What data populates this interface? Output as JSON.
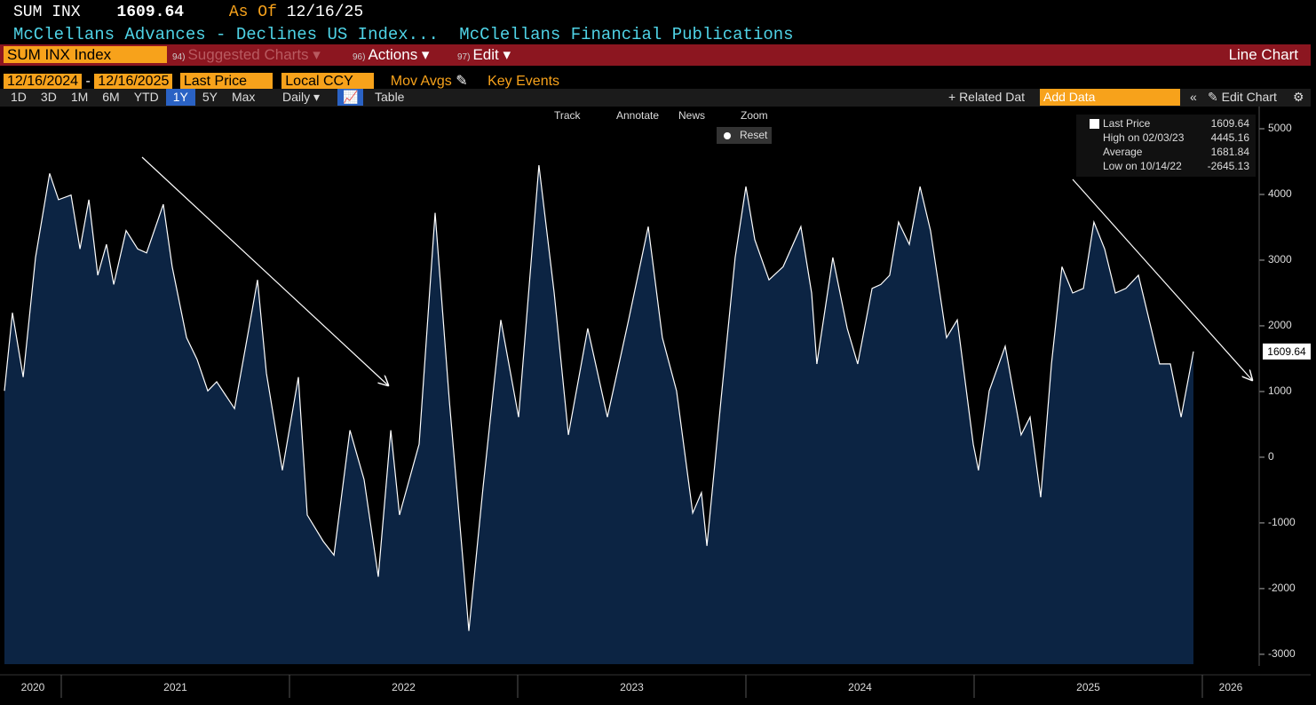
{
  "header": {
    "ticker": "SUM INX",
    "price": "1609.64",
    "as_of_label": "As Of",
    "as_of_date": "12/16/25",
    "description": "McClellans Advances - Declines US Index...",
    "source": "McClellans Financial Publications"
  },
  "toolbar": {
    "security": "SUM INX Index",
    "suggested_num": "94)",
    "suggested": "Suggested Charts",
    "actions_num": "96)",
    "actions": "Actions",
    "edit_num": "97)",
    "edit": "Edit",
    "chart_type": "Line Chart"
  },
  "controls": {
    "start_date": "12/16/2024",
    "end_date": "12/16/2025",
    "field": "Last Price",
    "currency": "Local CCY",
    "mov_avgs": "Mov Avgs",
    "key_events": "Key Events",
    "periods": [
      "1D",
      "3D",
      "1M",
      "6M",
      "YTD",
      "1Y",
      "5Y",
      "Max"
    ],
    "active_period": "1Y",
    "frequency": "Daily",
    "table": "Table",
    "related": "+ Related Dat",
    "add_data": "Add Data",
    "edit_chart": "Edit Chart"
  },
  "chart_tools": {
    "items": [
      "Track",
      "Annotate",
      "News",
      "Zoom"
    ],
    "reset": "Reset"
  },
  "legend": {
    "items": [
      {
        "label": "Last Price",
        "value": 1609.64
      },
      {
        "label": "High on 02/03/23",
        "value": 4445.16
      },
      {
        "label": "Average",
        "value": 1681.84
      },
      {
        "label": "Low on 10/14/22",
        "value": -2645.13
      }
    ]
  },
  "chart_data": {
    "type": "line",
    "color": "#ffffff",
    "fill": "#0c2443",
    "x": [
      2020.751,
      2020.786,
      2020.833,
      2020.887,
      2020.949,
      2020.988,
      2021.043,
      2021.082,
      2021.121,
      2021.16,
      2021.198,
      2021.23,
      2021.284,
      2021.335,
      2021.374,
      2021.447,
      2021.486,
      2021.549,
      2021.595,
      2021.642,
      2021.681,
      2021.759,
      2021.829,
      2021.86,
      2021.899,
      2021.969,
      2022.039,
      2022.078,
      2022.148,
      2022.195,
      2022.265,
      2022.327,
      2022.389,
      2022.444,
      2022.482,
      2022.568,
      2022.638,
      2022.7,
      2022.763,
      2022.786,
      2022.848,
      2022.926,
      2023.004,
      2023.093,
      2023.16,
      2023.222,
      2023.307,
      2023.393,
      2023.486,
      2023.572,
      2023.634,
      2023.696,
      2023.767,
      2023.805,
      2023.829,
      2023.891,
      2023.953,
      2024.0,
      2024.039,
      2024.101,
      2024.163,
      2024.241,
      2024.288,
      2024.311,
      2024.381,
      2024.444,
      2024.49,
      2024.553,
      2024.591,
      2024.63,
      2024.669,
      2024.716,
      2024.763,
      2024.809,
      2024.879,
      2024.926,
      2024.996,
      2025.019,
      2025.066,
      2025.136,
      2025.206,
      2025.245,
      2025.292,
      2025.339,
      2025.385,
      2025.432,
      2025.479,
      2025.525,
      2025.572,
      2025.619,
      2025.665,
      2025.72,
      2025.767,
      2025.813,
      2025.86,
      2025.907,
      2025.961
    ],
    "values": [
      1010,
      2200,
      1220,
      3040,
      4320,
      3920,
      3990,
      3170,
      3920,
      2770,
      3240,
      2630,
      3450,
      3170,
      3110,
      3850,
      2900,
      1820,
      1490,
      1010,
      1150,
      740,
      2090,
      2700,
      1280,
      -200,
      1220,
      -880,
      -1280,
      -1490,
      410,
      -340,
      -1820,
      410,
      -880,
      200,
      3720,
      880,
      -1690,
      -2645.13,
      -470,
      2090,
      610,
      4445.16,
      2500,
      340,
      1960,
      610,
      2090,
      3510,
      1820,
      1010,
      -850,
      -540,
      -1350,
      880,
      3040,
      4120,
      3310,
      2700,
      2900,
      3510,
      2500,
      1420,
      3040,
      1960,
      1420,
      2570,
      2630,
      2770,
      3580,
      3240,
      4120,
      3450,
      1820,
      2090,
      200,
      -200,
      1010,
      1690,
      340,
      610,
      -610,
      1420,
      2900,
      2500,
      2570,
      3580,
      3170,
      2500,
      2570,
      2770,
      2090,
      1420,
      1420,
      610,
      1609.64
    ],
    "xlim": [
      2020.751,
      2026.249
    ],
    "xticks": [
      2020,
      2021,
      2022,
      2023,
      2024,
      2025,
      2026
    ],
    "ylim": [
      -3150,
      5338
    ],
    "yticks": [
      5000,
      4000,
      3000,
      2000,
      1000,
      0,
      -1000,
      -2000,
      -3000
    ]
  }
}
